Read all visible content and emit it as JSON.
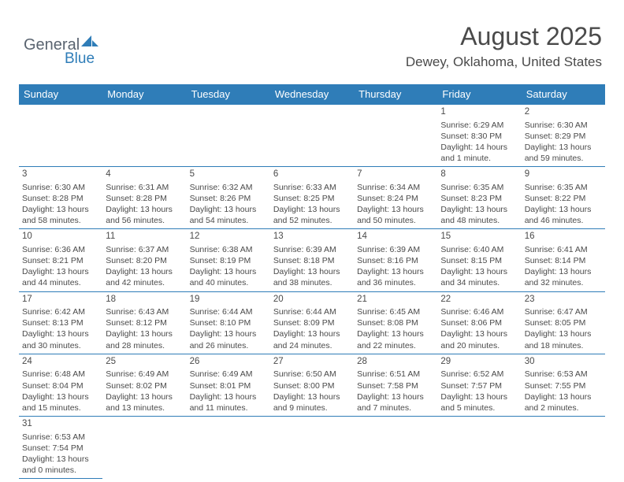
{
  "logo": {
    "part1": "General",
    "part2": "Blue"
  },
  "title": "August 2025",
  "subtitle": "Dewey, Oklahoma, United States",
  "columns": [
    "Sunday",
    "Monday",
    "Tuesday",
    "Wednesday",
    "Thursday",
    "Friday",
    "Saturday"
  ],
  "colors": {
    "header_bg": "#2f7db8",
    "header_text": "#ffffff",
    "border": "#2f7db8",
    "text": "#4a4a4a",
    "background": "#ffffff"
  },
  "typography": {
    "title_fontsize": 32,
    "subtitle_fontsize": 17,
    "dayheader_fontsize": 13,
    "cell_fontsize": 10.5,
    "logo_fontsize": 20
  },
  "weeks": [
    [
      null,
      null,
      null,
      null,
      null,
      {
        "n": "1",
        "sunrise": "Sunrise: 6:29 AM",
        "sunset": "Sunset: 8:30 PM",
        "daylight": "Daylight: 14 hours and 1 minute."
      },
      {
        "n": "2",
        "sunrise": "Sunrise: 6:30 AM",
        "sunset": "Sunset: 8:29 PM",
        "daylight": "Daylight: 13 hours and 59 minutes."
      }
    ],
    [
      {
        "n": "3",
        "sunrise": "Sunrise: 6:30 AM",
        "sunset": "Sunset: 8:28 PM",
        "daylight": "Daylight: 13 hours and 58 minutes."
      },
      {
        "n": "4",
        "sunrise": "Sunrise: 6:31 AM",
        "sunset": "Sunset: 8:28 PM",
        "daylight": "Daylight: 13 hours and 56 minutes."
      },
      {
        "n": "5",
        "sunrise": "Sunrise: 6:32 AM",
        "sunset": "Sunset: 8:26 PM",
        "daylight": "Daylight: 13 hours and 54 minutes."
      },
      {
        "n": "6",
        "sunrise": "Sunrise: 6:33 AM",
        "sunset": "Sunset: 8:25 PM",
        "daylight": "Daylight: 13 hours and 52 minutes."
      },
      {
        "n": "7",
        "sunrise": "Sunrise: 6:34 AM",
        "sunset": "Sunset: 8:24 PM",
        "daylight": "Daylight: 13 hours and 50 minutes."
      },
      {
        "n": "8",
        "sunrise": "Sunrise: 6:35 AM",
        "sunset": "Sunset: 8:23 PM",
        "daylight": "Daylight: 13 hours and 48 minutes."
      },
      {
        "n": "9",
        "sunrise": "Sunrise: 6:35 AM",
        "sunset": "Sunset: 8:22 PM",
        "daylight": "Daylight: 13 hours and 46 minutes."
      }
    ],
    [
      {
        "n": "10",
        "sunrise": "Sunrise: 6:36 AM",
        "sunset": "Sunset: 8:21 PM",
        "daylight": "Daylight: 13 hours and 44 minutes."
      },
      {
        "n": "11",
        "sunrise": "Sunrise: 6:37 AM",
        "sunset": "Sunset: 8:20 PM",
        "daylight": "Daylight: 13 hours and 42 minutes."
      },
      {
        "n": "12",
        "sunrise": "Sunrise: 6:38 AM",
        "sunset": "Sunset: 8:19 PM",
        "daylight": "Daylight: 13 hours and 40 minutes."
      },
      {
        "n": "13",
        "sunrise": "Sunrise: 6:39 AM",
        "sunset": "Sunset: 8:18 PM",
        "daylight": "Daylight: 13 hours and 38 minutes."
      },
      {
        "n": "14",
        "sunrise": "Sunrise: 6:39 AM",
        "sunset": "Sunset: 8:16 PM",
        "daylight": "Daylight: 13 hours and 36 minutes."
      },
      {
        "n": "15",
        "sunrise": "Sunrise: 6:40 AM",
        "sunset": "Sunset: 8:15 PM",
        "daylight": "Daylight: 13 hours and 34 minutes."
      },
      {
        "n": "16",
        "sunrise": "Sunrise: 6:41 AM",
        "sunset": "Sunset: 8:14 PM",
        "daylight": "Daylight: 13 hours and 32 minutes."
      }
    ],
    [
      {
        "n": "17",
        "sunrise": "Sunrise: 6:42 AM",
        "sunset": "Sunset: 8:13 PM",
        "daylight": "Daylight: 13 hours and 30 minutes."
      },
      {
        "n": "18",
        "sunrise": "Sunrise: 6:43 AM",
        "sunset": "Sunset: 8:12 PM",
        "daylight": "Daylight: 13 hours and 28 minutes."
      },
      {
        "n": "19",
        "sunrise": "Sunrise: 6:44 AM",
        "sunset": "Sunset: 8:10 PM",
        "daylight": "Daylight: 13 hours and 26 minutes."
      },
      {
        "n": "20",
        "sunrise": "Sunrise: 6:44 AM",
        "sunset": "Sunset: 8:09 PM",
        "daylight": "Daylight: 13 hours and 24 minutes."
      },
      {
        "n": "21",
        "sunrise": "Sunrise: 6:45 AM",
        "sunset": "Sunset: 8:08 PM",
        "daylight": "Daylight: 13 hours and 22 minutes."
      },
      {
        "n": "22",
        "sunrise": "Sunrise: 6:46 AM",
        "sunset": "Sunset: 8:06 PM",
        "daylight": "Daylight: 13 hours and 20 minutes."
      },
      {
        "n": "23",
        "sunrise": "Sunrise: 6:47 AM",
        "sunset": "Sunset: 8:05 PM",
        "daylight": "Daylight: 13 hours and 18 minutes."
      }
    ],
    [
      {
        "n": "24",
        "sunrise": "Sunrise: 6:48 AM",
        "sunset": "Sunset: 8:04 PM",
        "daylight": "Daylight: 13 hours and 15 minutes."
      },
      {
        "n": "25",
        "sunrise": "Sunrise: 6:49 AM",
        "sunset": "Sunset: 8:02 PM",
        "daylight": "Daylight: 13 hours and 13 minutes."
      },
      {
        "n": "26",
        "sunrise": "Sunrise: 6:49 AM",
        "sunset": "Sunset: 8:01 PM",
        "daylight": "Daylight: 13 hours and 11 minutes."
      },
      {
        "n": "27",
        "sunrise": "Sunrise: 6:50 AM",
        "sunset": "Sunset: 8:00 PM",
        "daylight": "Daylight: 13 hours and 9 minutes."
      },
      {
        "n": "28",
        "sunrise": "Sunrise: 6:51 AM",
        "sunset": "Sunset: 7:58 PM",
        "daylight": "Daylight: 13 hours and 7 minutes."
      },
      {
        "n": "29",
        "sunrise": "Sunrise: 6:52 AM",
        "sunset": "Sunset: 7:57 PM",
        "daylight": "Daylight: 13 hours and 5 minutes."
      },
      {
        "n": "30",
        "sunrise": "Sunrise: 6:53 AM",
        "sunset": "Sunset: 7:55 PM",
        "daylight": "Daylight: 13 hours and 2 minutes."
      }
    ],
    [
      {
        "n": "31",
        "sunrise": "Sunrise: 6:53 AM",
        "sunset": "Sunset: 7:54 PM",
        "daylight": "Daylight: 13 hours and 0 minutes."
      },
      null,
      null,
      null,
      null,
      null,
      null
    ]
  ]
}
